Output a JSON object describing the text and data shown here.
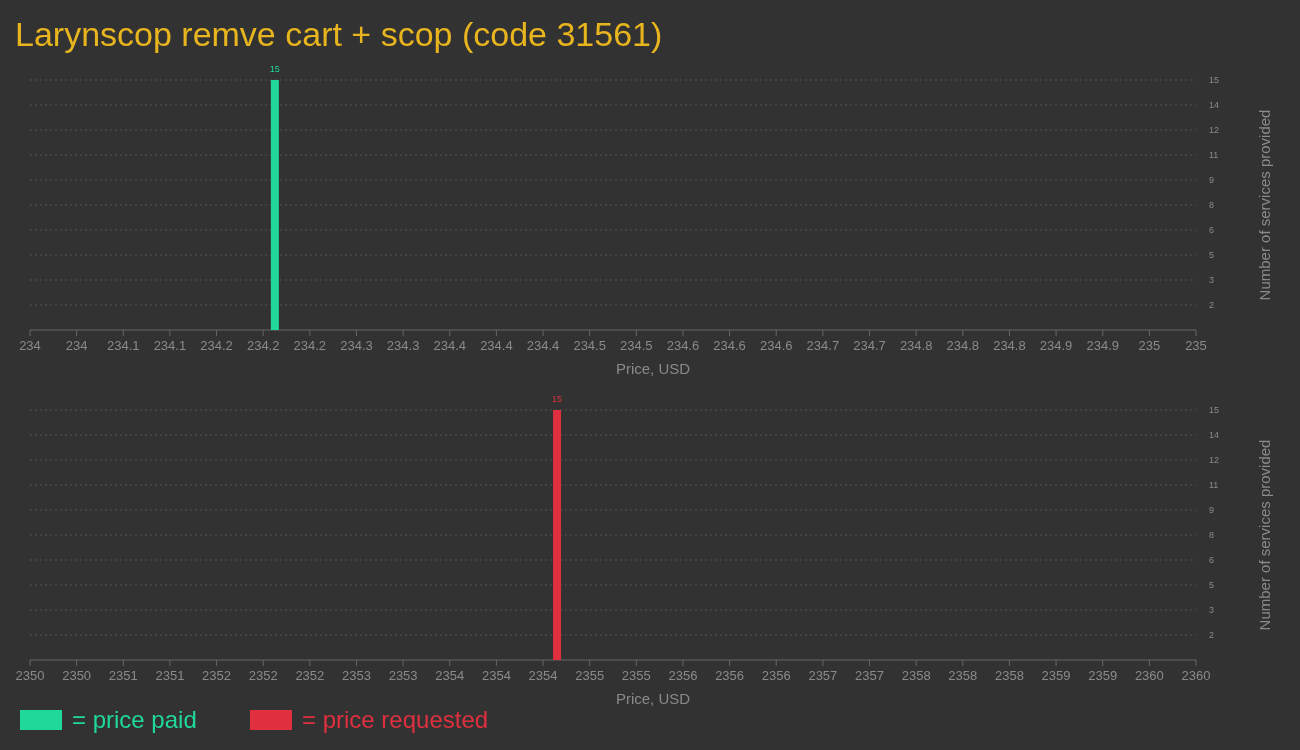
{
  "chart_data": [
    {
      "type": "bar",
      "title": "Larynscop remve cart + scop (code 31561)",
      "xlabel": "Price, USD",
      "ylabel": "Number of services provided",
      "x": [
        234.21
      ],
      "series": [
        {
          "name": "= price paid",
          "color": "#1fd89a",
          "values": [
            15
          ]
        }
      ],
      "xlim": [
        234,
        235
      ],
      "xticks": [
        234,
        {
          "value": 234.04,
          "label": "234"
        },
        {
          "value": 234.08,
          "label": "234.1"
        },
        {
          "value": 234.12,
          "label": "234.1"
        },
        {
          "value": 234.16,
          "label": "234.2"
        },
        {
          "value": 234.2,
          "label": "234.2"
        },
        {
          "value": 234.24,
          "label": "234.2"
        },
        {
          "value": 234.28,
          "label": "234.3"
        },
        {
          "value": 234.32,
          "label": "234.3"
        },
        {
          "value": 234.36,
          "label": "234.4"
        },
        {
          "value": 234.4,
          "label": "234.4"
        },
        {
          "value": 234.44,
          "label": "234.4"
        },
        {
          "value": 234.48,
          "label": "234.5"
        },
        {
          "value": 234.52,
          "label": "234.5"
        },
        {
          "value": 234.56,
          "label": "234.6"
        },
        {
          "value": 234.6,
          "label": "234.6"
        },
        {
          "value": 234.64,
          "label": "234.6"
        },
        {
          "value": 234.68,
          "label": "234.7"
        },
        {
          "value": 234.72,
          "label": "234.7"
        },
        {
          "value": 234.76,
          "label": "234.8"
        },
        {
          "value": 234.8,
          "label": "234.8"
        },
        {
          "value": 234.84,
          "label": "234.8"
        },
        {
          "value": 234.88,
          "label": "234.9"
        },
        {
          "value": 234.92,
          "label": "234.9"
        },
        {
          "value": 234.96,
          "label": "235"
        },
        235
      ],
      "ylim": [
        0,
        15
      ],
      "yticks": [
        {
          "value": 1.5,
          "label": "2"
        },
        3,
        {
          "value": 4.5,
          "label": "5"
        },
        6,
        {
          "value": 7.5,
          "label": "8"
        },
        9,
        {
          "value": 10.5,
          "label": "11"
        },
        12,
        {
          "value": 13.5,
          "label": "14"
        },
        15
      ],
      "grid": "y",
      "data_labels": true,
      "legend": "bottom"
    },
    {
      "type": "bar",
      "xlabel": "Price, USD",
      "ylabel": "Number of services provided",
      "x": [
        2354.52
      ],
      "series": [
        {
          "name": "= price requested",
          "color": "#e0303f",
          "values": [
            15
          ]
        }
      ],
      "xlim": [
        2350,
        2360
      ],
      "xticks": [
        2350,
        {
          "value": 2350.4,
          "label": "2350"
        },
        {
          "value": 2350.8,
          "label": "2351"
        },
        {
          "value": 2351.2,
          "label": "2351"
        },
        {
          "value": 2351.6,
          "label": "2352"
        },
        2352,
        {
          "value": 2352.4,
          "label": "2352"
        },
        {
          "value": 2352.8,
          "label": "2353"
        },
        {
          "value": 2353.2,
          "label": "2353"
        },
        {
          "value": 2353.6,
          "label": "2354"
        },
        2354,
        {
          "value": 2354.4,
          "label": "2354"
        },
        {
          "value": 2354.8,
          "label": "2355"
        },
        {
          "value": 2355.2,
          "label": "2355"
        },
        {
          "value": 2355.6,
          "label": "2356"
        },
        2356,
        {
          "value": 2356.4,
          "label": "2356"
        },
        {
          "value": 2356.8,
          "label": "2357"
        },
        {
          "value": 2357.2,
          "label": "2357"
        },
        {
          "value": 2357.6,
          "label": "2358"
        },
        2358,
        {
          "value": 2358.4,
          "label": "2358"
        },
        {
          "value": 2358.8,
          "label": "2359"
        },
        {
          "value": 2359.2,
          "label": "2359"
        },
        {
          "value": 2359.6,
          "label": "2360"
        },
        2360
      ],
      "ylim": [
        0,
        15
      ],
      "yticks": [
        {
          "value": 1.5,
          "label": "2"
        },
        3,
        {
          "value": 4.5,
          "label": "5"
        },
        6,
        {
          "value": 7.5,
          "label": "8"
        },
        9,
        {
          "value": 10.5,
          "label": "11"
        },
        12,
        {
          "value": 13.5,
          "label": "14"
        },
        15
      ],
      "grid": "y",
      "data_labels": true,
      "legend": "bottom"
    }
  ]
}
